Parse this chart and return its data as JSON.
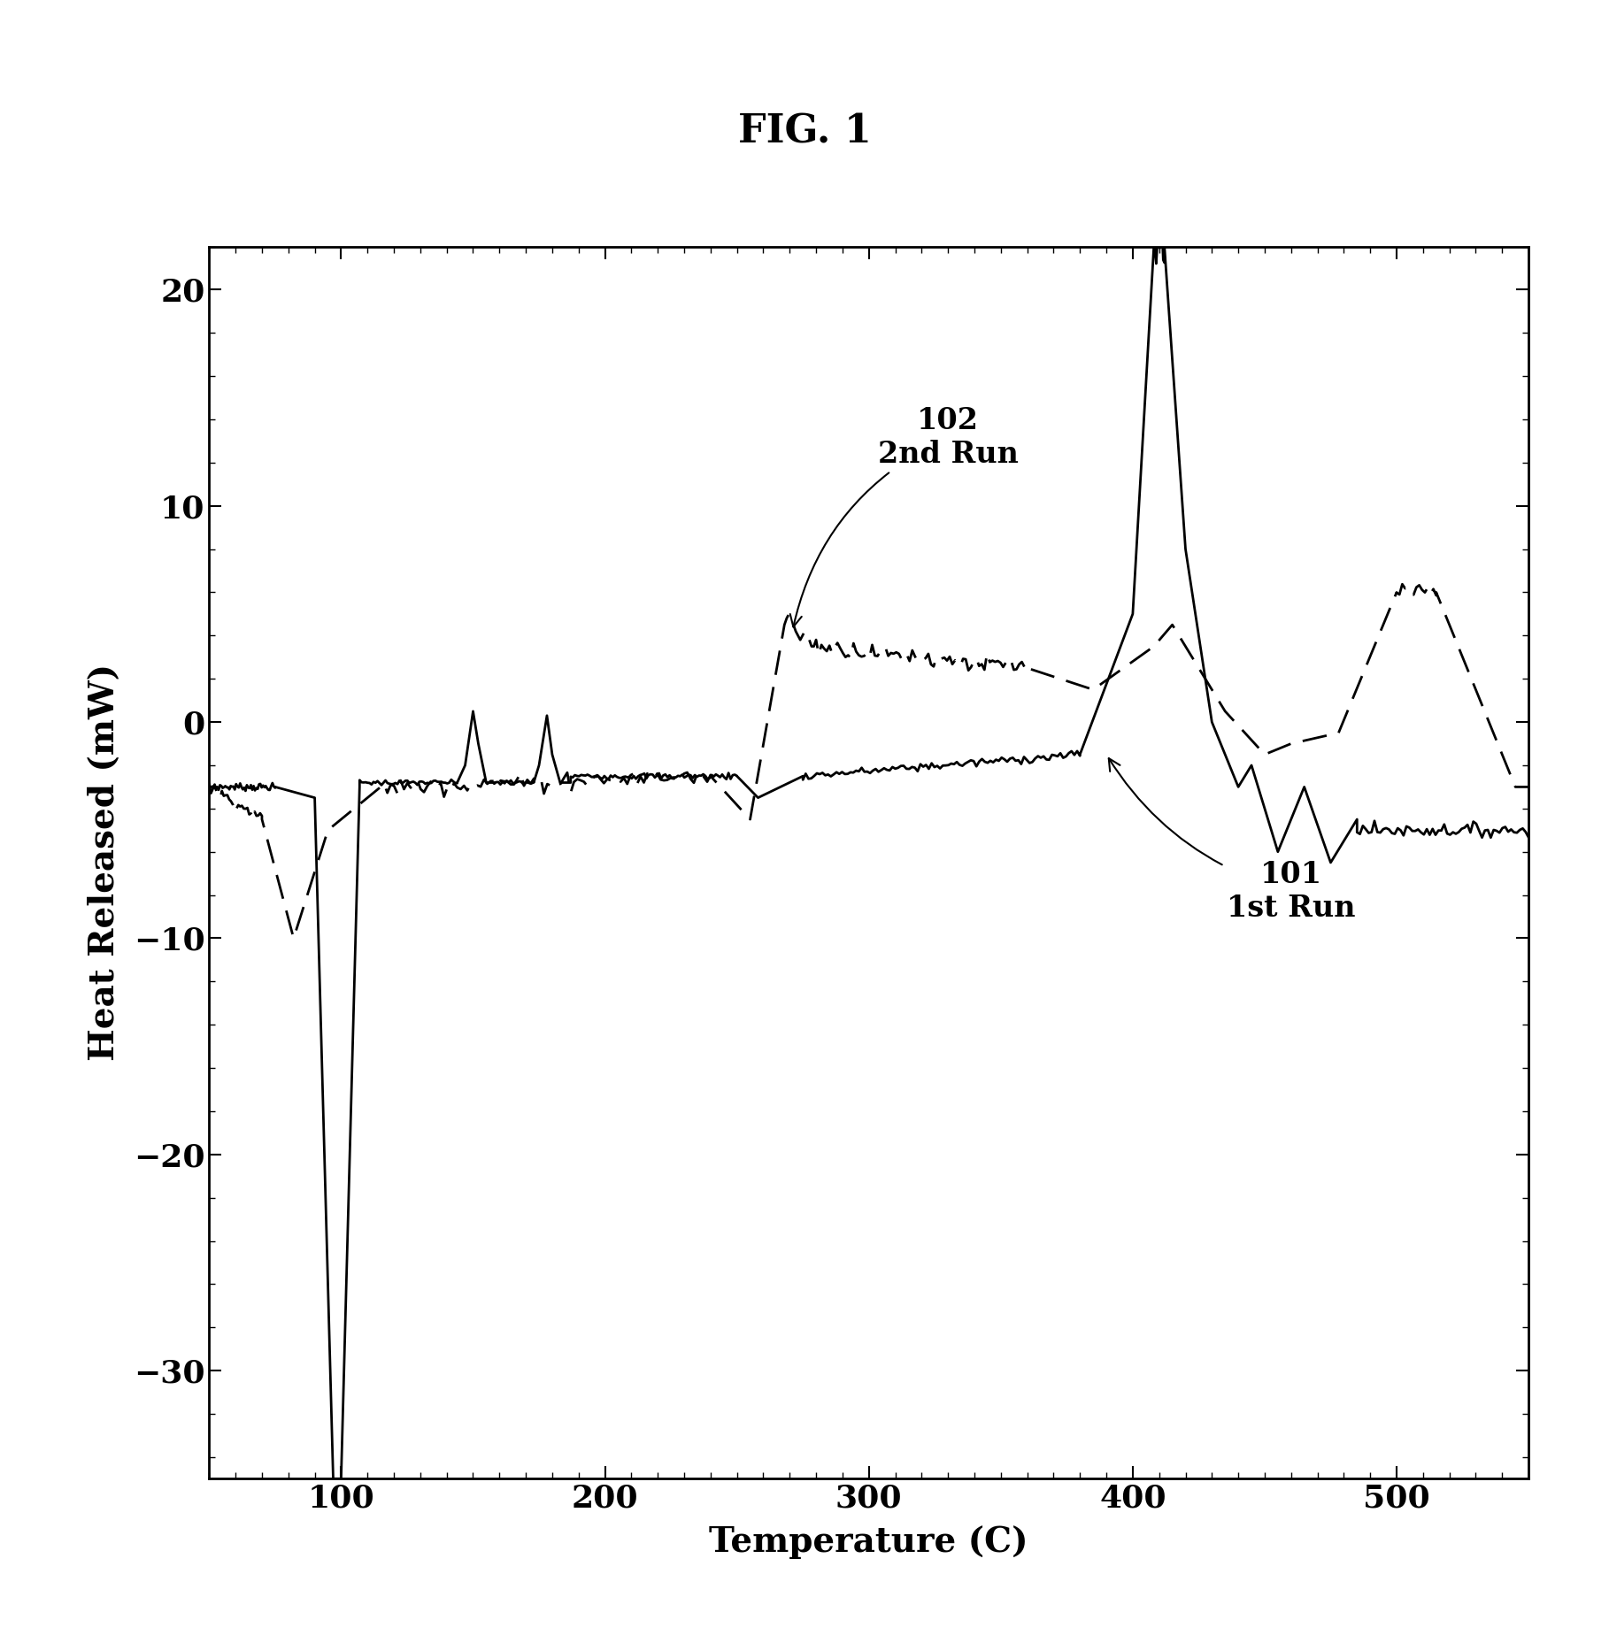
{
  "title": "FIG. 1",
  "xlabel": "Temperature (C)",
  "ylabel": "Heat Released (mW)",
  "xlim": [
    50,
    550
  ],
  "ylim": [
    -35,
    22
  ],
  "yticks": [
    20,
    10,
    0,
    -10,
    -20,
    -30
  ],
  "xticks": [
    100,
    200,
    300,
    400,
    500
  ],
  "background_color": "#ffffff",
  "line_color": "#000000"
}
